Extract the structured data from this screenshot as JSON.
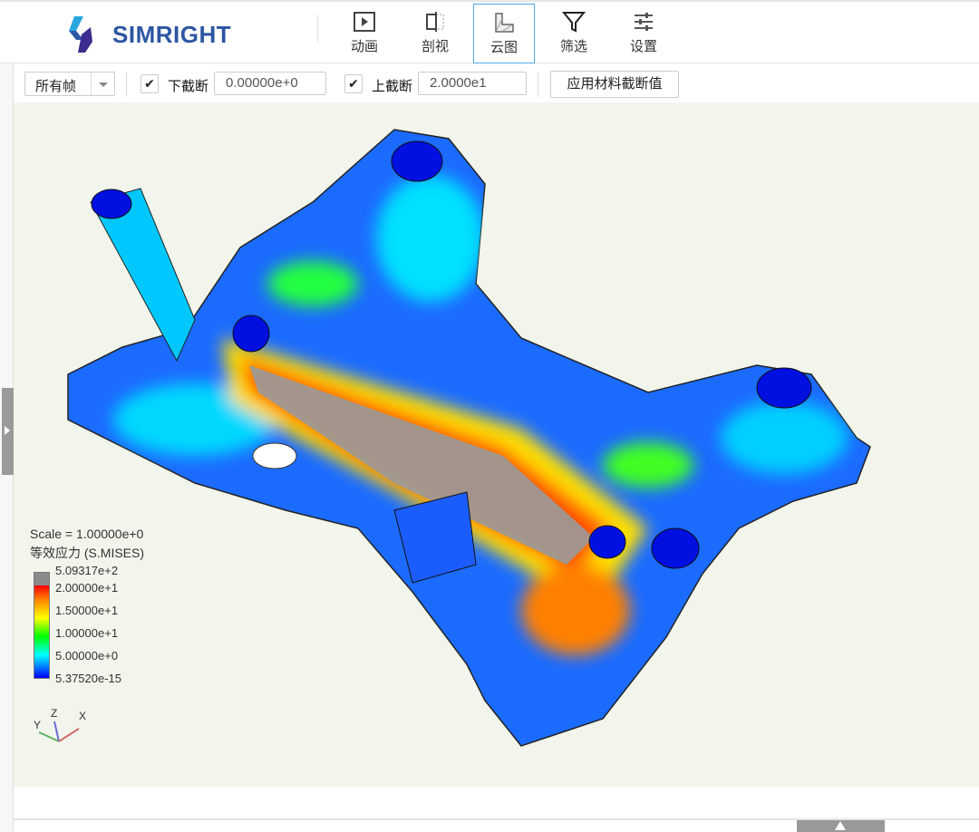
{
  "header": {
    "logo_text": "SIMRIGHT",
    "tools": [
      {
        "label": "动画",
        "icon": "animation-icon"
      },
      {
        "label": "剖视",
        "icon": "section-view-icon"
      },
      {
        "label": "云图",
        "icon": "contour-icon",
        "active": true
      },
      {
        "label": "筛选",
        "icon": "filter-icon"
      },
      {
        "label": "设置",
        "icon": "settings-sliders-icon"
      }
    ]
  },
  "toolbar": {
    "frame_select": "所有帧",
    "lower_cut": {
      "checked": true,
      "label": "下截断",
      "value": "0.00000e+0"
    },
    "upper_cut": {
      "checked": true,
      "label": "上截断",
      "value": "2.0000e1"
    },
    "apply_button": "应用材料截断值",
    "check_mark": "✔"
  },
  "legend": {
    "scale": "Scale = 1.00000e+0",
    "title": "等效应力 (S.MISES)",
    "ticks": [
      "5.09317e+2",
      "2.00000e+1",
      "1.50000e+1",
      "1.00000e+1",
      "5.00000e+0",
      "5.37520e-15"
    ],
    "colors": [
      "#8a8a8a",
      "#ff0000",
      "#ff8000",
      "#ffff00",
      "#00ff00",
      "#00ffff",
      "#0000ff"
    ]
  },
  "triad": {
    "x": "X",
    "y": "Y",
    "z": "Z"
  }
}
